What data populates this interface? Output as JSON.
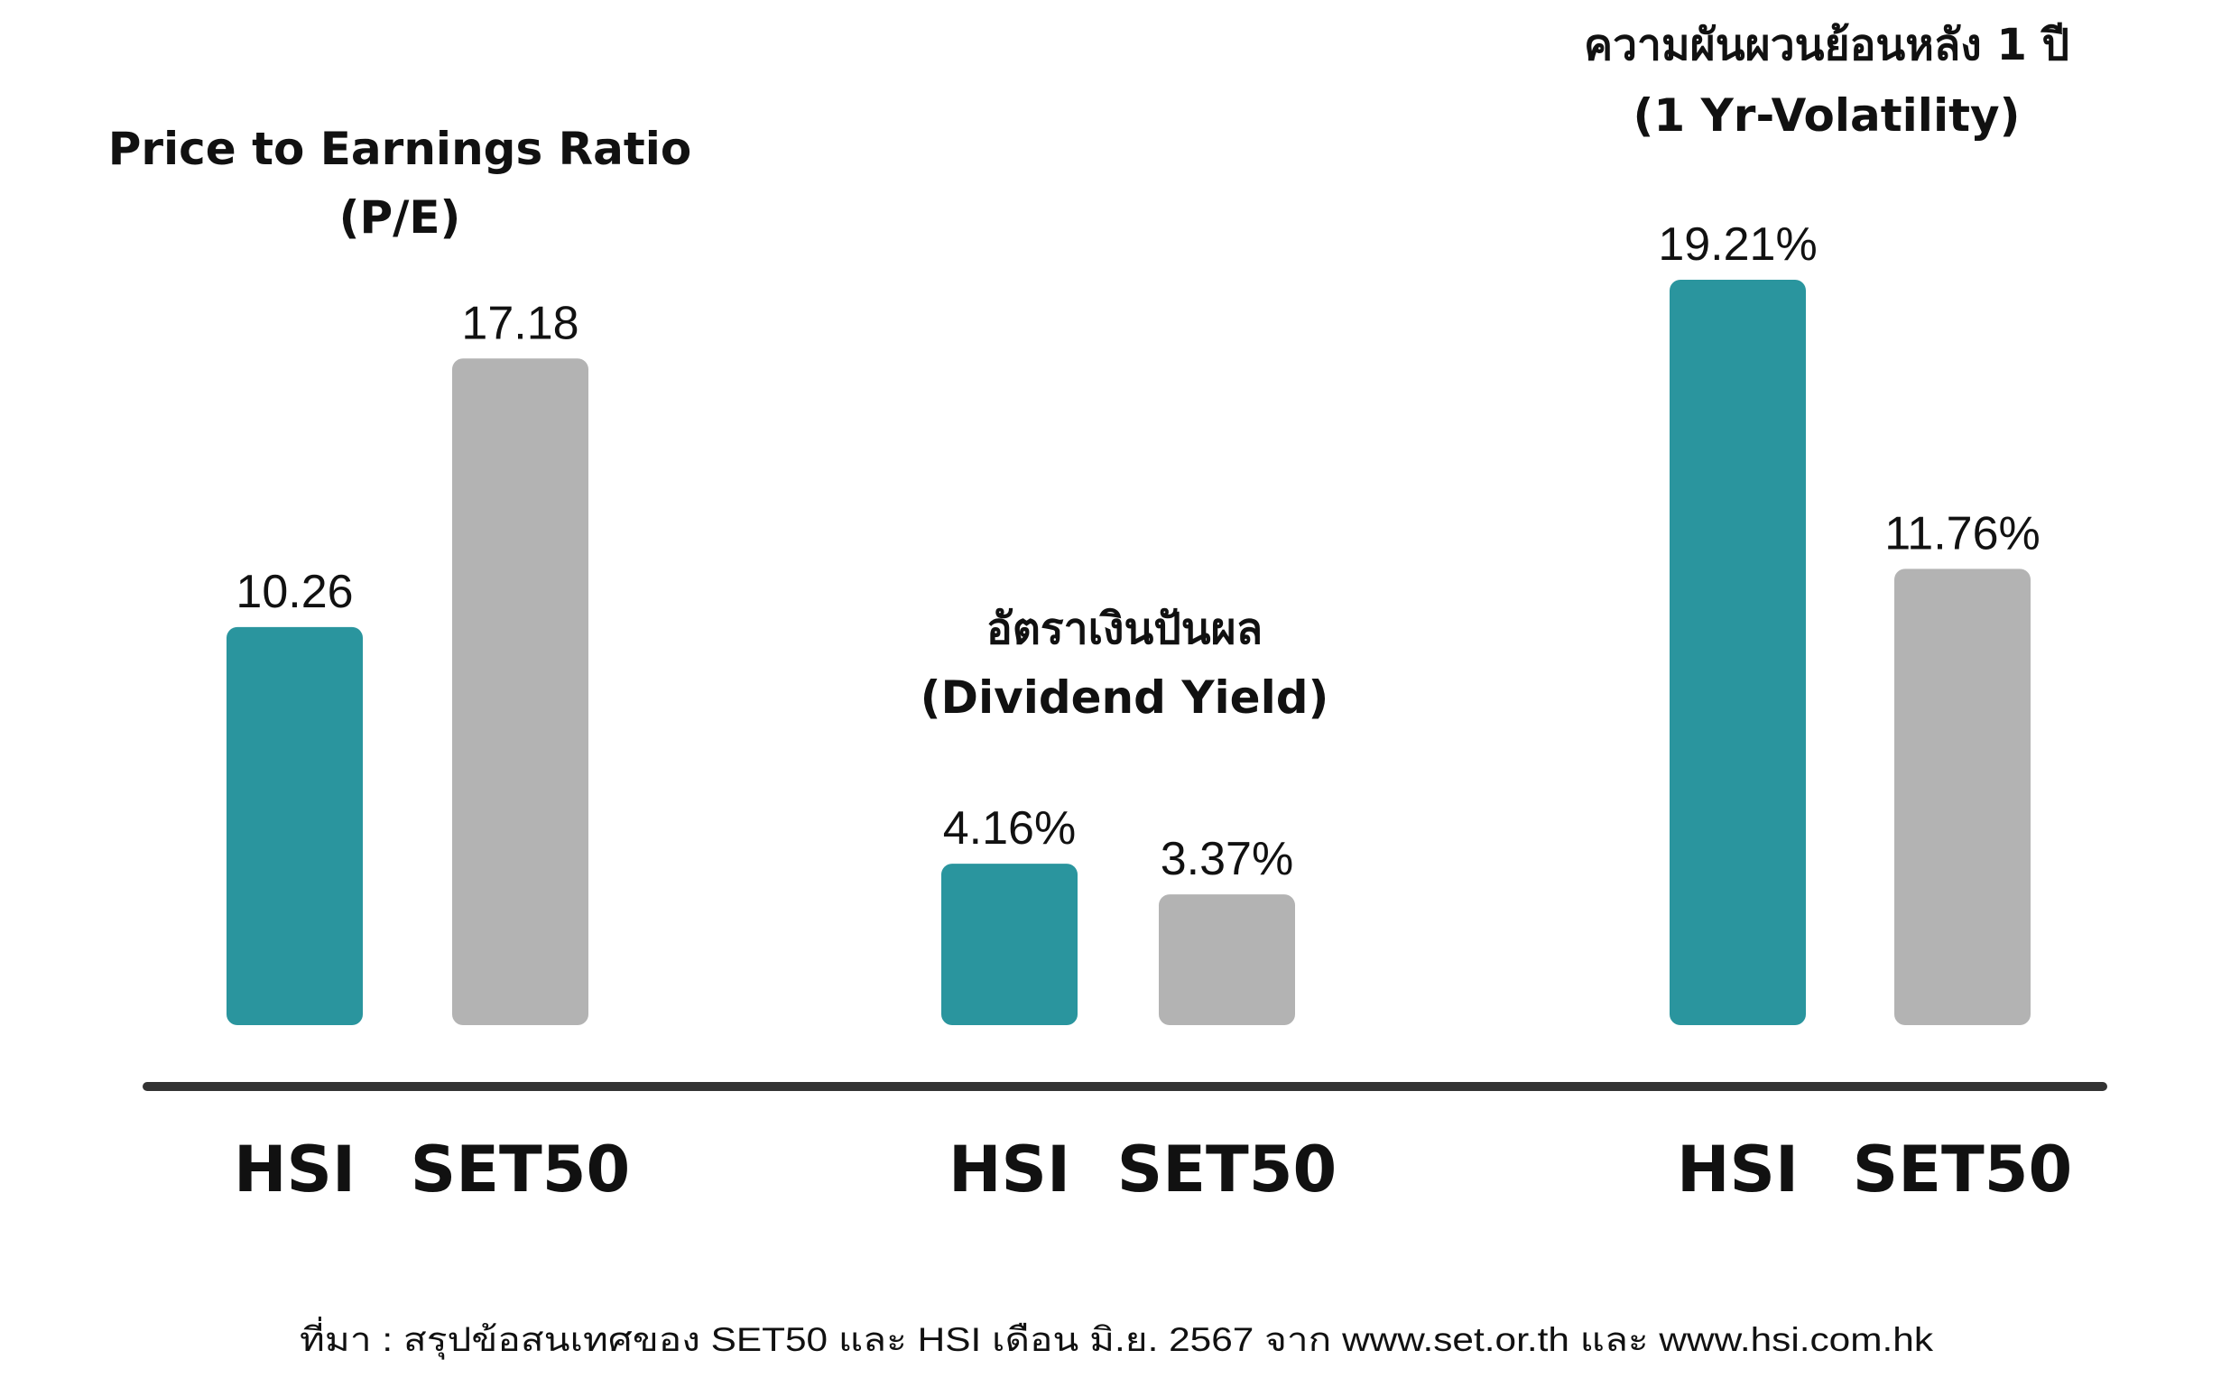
{
  "chart_data": [
    {
      "type": "bar",
      "title": "Price to Earnings Ratio",
      "subtitle": "(P/E)",
      "categories": [
        "HSI",
        "SET50"
      ],
      "values": [
        10.26,
        17.18
      ],
      "value_labels": [
        "10.26",
        "17.18"
      ],
      "colors": [
        "#2A959E",
        "#B3B3B3"
      ]
    },
    {
      "type": "bar",
      "title": "อัตราเงินปันผล",
      "subtitle": "(Dividend Yield)",
      "categories": [
        "HSI",
        "SET50"
      ],
      "values": [
        4.16,
        3.37
      ],
      "value_labels": [
        "4.16%",
        "3.37%"
      ],
      "colors": [
        "#2A959E",
        "#B3B3B3"
      ]
    },
    {
      "type": "bar",
      "title": "ความผันผวนย้อนหลัง 1 ปี",
      "subtitle": "(1 Yr-Volatility)",
      "categories": [
        "HSI",
        "SET50"
      ],
      "values": [
        19.21,
        11.76
      ],
      "value_labels": [
        "19.21%",
        "11.76%"
      ],
      "colors": [
        "#2A959E",
        "#B3B3B3"
      ]
    }
  ],
  "source": "ที่มา : สรุปข้อสนเทศของ SET50 และ HSI เดือน มิ.ย. 2567 จาก www.set.or.th และ www.hsi.com.hk",
  "colors": {
    "hsi": "#2A959E",
    "set50": "#B3B3B3",
    "baseline": "#333333"
  }
}
